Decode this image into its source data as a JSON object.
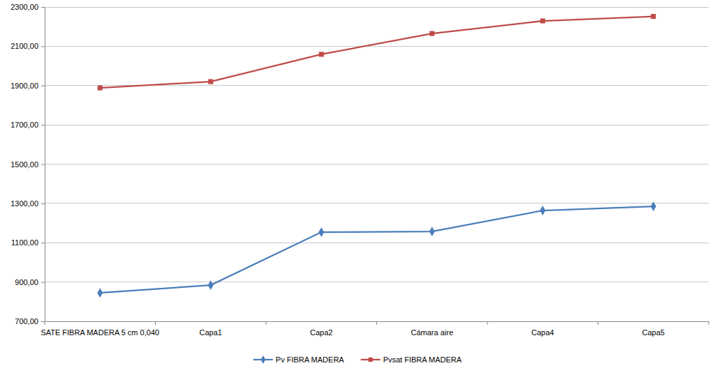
{
  "chart_data": {
    "type": "line",
    "categories": [
      "SATE FIBRA MADERA 5 cm 0,040",
      "Capa1",
      "Capa2",
      "Cámara aire",
      "Capa4",
      "Capa5"
    ],
    "series": [
      {
        "name": "Pv FIBRA MADERA",
        "color": "#4a7ebb",
        "marker": "diamond",
        "values": [
          845,
          884,
          1154,
          1157,
          1264,
          1285
        ]
      },
      {
        "name": "Pvsat FIBRA MADERA",
        "color": "#be4b48",
        "marker": "square",
        "values": [
          1888,
          1920,
          2059,
          2165,
          2229,
          2252
        ]
      }
    ],
    "ylim": [
      700,
      2300
    ],
    "yticks": [
      {
        "value": 700,
        "label": "700,00"
      },
      {
        "value": 900,
        "label": "900,00"
      },
      {
        "value": 1100,
        "label": "1100,00"
      },
      {
        "value": 1300,
        "label": "1300,00"
      },
      {
        "value": 1500,
        "label": "1500,00"
      },
      {
        "value": 1700,
        "label": "1700,00"
      },
      {
        "value": 1900,
        "label": "1900,00"
      },
      {
        "value": 2100,
        "label": "2100,00"
      },
      {
        "value": 2300,
        "label": "2300,00"
      }
    ],
    "grid": true,
    "legend": "bottom"
  }
}
